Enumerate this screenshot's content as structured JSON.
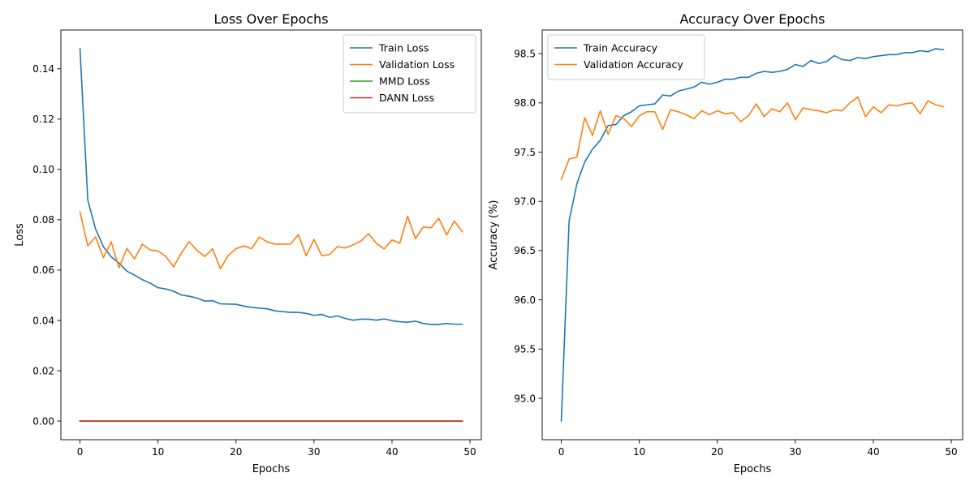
{
  "chart_data": [
    {
      "type": "line",
      "title": "Loss Over Epochs",
      "xlabel": "Epochs",
      "ylabel": "Loss",
      "xlim": [
        -2.45,
        51.45
      ],
      "ylim": [
        -0.0074,
        0.1554
      ],
      "xticks": [
        0,
        10,
        20,
        30,
        40,
        50
      ],
      "yticks": [
        0.0,
        0.02,
        0.04,
        0.06,
        0.08,
        0.1,
        0.12,
        0.14
      ],
      "ytick_format": 2,
      "legend": "top-right",
      "grid": false,
      "series": [
        {
          "name": "Train Loss",
          "color": "#1f77b4",
          "x": [
            0,
            1,
            2,
            3,
            4,
            5,
            6,
            7,
            8,
            9,
            10,
            11,
            12,
            13,
            14,
            15,
            16,
            17,
            18,
            19,
            20,
            21,
            22,
            23,
            24,
            25,
            26,
            27,
            28,
            29,
            30,
            31,
            32,
            33,
            34,
            35,
            36,
            37,
            38,
            39,
            40,
            41,
            42,
            43,
            44,
            45,
            46,
            47,
            48,
            49
          ],
          "values": [
            0.148,
            0.0878,
            0.0763,
            0.0693,
            0.0653,
            0.0628,
            0.0596,
            0.058,
            0.0562,
            0.0548,
            0.053,
            0.0525,
            0.0516,
            0.0501,
            0.0496,
            0.0489,
            0.0477,
            0.0478,
            0.0466,
            0.0465,
            0.0464,
            0.0457,
            0.0452,
            0.0449,
            0.0446,
            0.0438,
            0.0435,
            0.0432,
            0.0432,
            0.0428,
            0.042,
            0.0424,
            0.0412,
            0.0418,
            0.0408,
            0.0401,
            0.0405,
            0.0405,
            0.0401,
            0.0406,
            0.0399,
            0.0395,
            0.0393,
            0.0397,
            0.0388,
            0.0384,
            0.0384,
            0.0388,
            0.0385,
            0.0385
          ]
        },
        {
          "name": "Validation Loss",
          "color": "#ff7f0e",
          "x": [
            0,
            1,
            2,
            3,
            4,
            5,
            6,
            7,
            8,
            9,
            10,
            11,
            12,
            13,
            14,
            15,
            16,
            17,
            18,
            19,
            20,
            21,
            22,
            23,
            24,
            25,
            26,
            27,
            28,
            29,
            30,
            31,
            32,
            33,
            34,
            35,
            36,
            37,
            38,
            39,
            40,
            41,
            42,
            43,
            44,
            45,
            46,
            47,
            48,
            49
          ],
          "values": [
            0.0831,
            0.0696,
            0.0732,
            0.065,
            0.0712,
            0.0609,
            0.0686,
            0.0645,
            0.0703,
            0.068,
            0.0676,
            0.0654,
            0.0613,
            0.0668,
            0.0713,
            0.0678,
            0.0654,
            0.0685,
            0.0605,
            0.0658,
            0.0685,
            0.0696,
            0.0685,
            0.0731,
            0.0712,
            0.0703,
            0.0703,
            0.0704,
            0.0741,
            0.0657,
            0.0722,
            0.0657,
            0.0662,
            0.0693,
            0.0688,
            0.07,
            0.0715,
            0.0745,
            0.0706,
            0.0684,
            0.072,
            0.0707,
            0.0814,
            0.0725,
            0.0771,
            0.0768,
            0.0806,
            0.074,
            0.0795,
            0.0752
          ]
        },
        {
          "name": "MMD Loss",
          "color": "#2ca02c",
          "x": [
            0,
            1,
            2,
            3,
            4,
            5,
            6,
            7,
            8,
            9,
            10,
            11,
            12,
            13,
            14,
            15,
            16,
            17,
            18,
            19,
            20,
            21,
            22,
            23,
            24,
            25,
            26,
            27,
            28,
            29,
            30,
            31,
            32,
            33,
            34,
            35,
            36,
            37,
            38,
            39,
            40,
            41,
            42,
            43,
            44,
            45,
            46,
            47,
            48,
            49
          ],
          "values": [
            0,
            0,
            0,
            0,
            0,
            0,
            0,
            0,
            0,
            0,
            0,
            0,
            0,
            0,
            0,
            0,
            0,
            0,
            0,
            0,
            0,
            0,
            0,
            0,
            0,
            0,
            0,
            0,
            0,
            0,
            0,
            0,
            0,
            0,
            0,
            0,
            0,
            0,
            0,
            0,
            0,
            0,
            0,
            0,
            0,
            0,
            0,
            0,
            0,
            0
          ]
        },
        {
          "name": "DANN Loss",
          "color": "#d62728",
          "x": [
            0,
            1,
            2,
            3,
            4,
            5,
            6,
            7,
            8,
            9,
            10,
            11,
            12,
            13,
            14,
            15,
            16,
            17,
            18,
            19,
            20,
            21,
            22,
            23,
            24,
            25,
            26,
            27,
            28,
            29,
            30,
            31,
            32,
            33,
            34,
            35,
            36,
            37,
            38,
            39,
            40,
            41,
            42,
            43,
            44,
            45,
            46,
            47,
            48,
            49
          ],
          "values": [
            0,
            0,
            0,
            0,
            0,
            0,
            0,
            0,
            0,
            0,
            0,
            0,
            0,
            0,
            0,
            0,
            0,
            0,
            0,
            0,
            0,
            0,
            0,
            0,
            0,
            0,
            0,
            0,
            0,
            0,
            0,
            0,
            0,
            0,
            0,
            0,
            0,
            0,
            0,
            0,
            0,
            0,
            0,
            0,
            0,
            0,
            0,
            0,
            0,
            0
          ]
        }
      ]
    },
    {
      "type": "line",
      "title": "Accuracy Over Epochs",
      "xlabel": "Epochs",
      "ylabel": "Accuracy (%)",
      "xlim": [
        -2.45,
        51.45
      ],
      "ylim": [
        94.58,
        98.74
      ],
      "xticks": [
        0,
        10,
        20,
        30,
        40,
        50
      ],
      "yticks": [
        95.0,
        95.5,
        96.0,
        96.5,
        97.0,
        97.5,
        98.0,
        98.5
      ],
      "ytick_format": 1,
      "legend": "top-left",
      "grid": false,
      "series": [
        {
          "name": "Train Accuracy",
          "color": "#1f77b4",
          "x": [
            0,
            1,
            2,
            3,
            4,
            5,
            6,
            7,
            8,
            9,
            10,
            11,
            12,
            13,
            14,
            15,
            16,
            17,
            18,
            19,
            20,
            21,
            22,
            23,
            24,
            25,
            26,
            27,
            28,
            29,
            30,
            31,
            32,
            33,
            34,
            35,
            36,
            37,
            38,
            39,
            40,
            41,
            42,
            43,
            44,
            45,
            46,
            47,
            48,
            49
          ],
          "values": [
            94.77,
            96.8,
            97.18,
            97.4,
            97.53,
            97.62,
            97.77,
            97.78,
            97.87,
            97.91,
            97.97,
            97.98,
            97.99,
            98.08,
            98.07,
            98.12,
            98.14,
            98.16,
            98.21,
            98.19,
            98.21,
            98.24,
            98.24,
            98.26,
            98.26,
            98.3,
            98.32,
            98.31,
            98.32,
            98.34,
            98.39,
            98.37,
            98.43,
            98.4,
            98.42,
            98.48,
            98.44,
            98.43,
            98.46,
            98.45,
            98.47,
            98.48,
            98.49,
            98.49,
            98.51,
            98.51,
            98.53,
            98.52,
            98.55,
            98.54
          ]
        },
        {
          "name": "Validation Accuracy",
          "color": "#ff7f0e",
          "x": [
            0,
            1,
            2,
            3,
            4,
            5,
            6,
            7,
            8,
            9,
            10,
            11,
            12,
            13,
            14,
            15,
            16,
            17,
            18,
            19,
            20,
            21,
            22,
            23,
            24,
            25,
            26,
            27,
            28,
            29,
            30,
            31,
            32,
            33,
            34,
            35,
            36,
            37,
            38,
            39,
            40,
            41,
            42,
            43,
            44,
            45,
            46,
            47,
            48,
            49
          ],
          "values": [
            97.22,
            97.43,
            97.45,
            97.85,
            97.67,
            97.92,
            97.68,
            97.87,
            97.84,
            97.76,
            97.87,
            97.91,
            97.91,
            97.73,
            97.93,
            97.91,
            97.88,
            97.84,
            97.92,
            97.88,
            97.92,
            97.89,
            97.9,
            97.81,
            97.87,
            97.99,
            97.86,
            97.94,
            97.91,
            98.0,
            97.83,
            97.95,
            97.93,
            97.92,
            97.9,
            97.93,
            97.92,
            98.0,
            98.06,
            97.86,
            97.96,
            97.9,
            97.98,
            97.97,
            97.99,
            98.0,
            97.89,
            98.02,
            97.98,
            97.96
          ]
        }
      ]
    }
  ]
}
